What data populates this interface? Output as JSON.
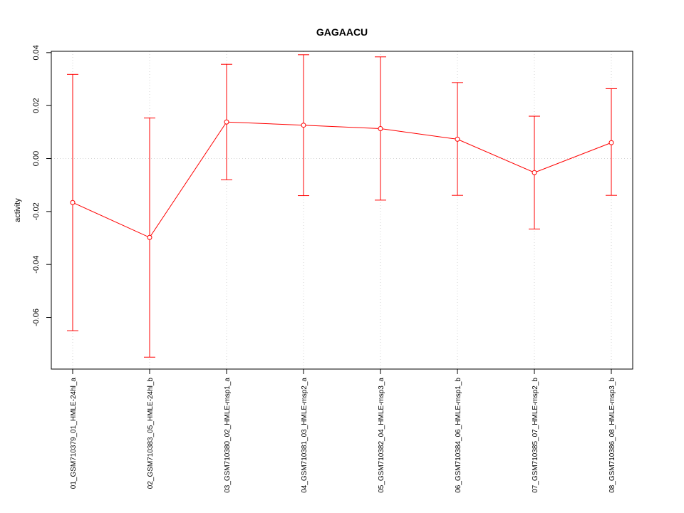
{
  "chart_data": {
    "type": "line",
    "title": "GAGAACU",
    "ylabel": "activity",
    "xlabel": "",
    "ylim": [
      -0.0795,
      0.0405
    ],
    "yticks": [
      -0.06,
      -0.04,
      -0.02,
      0.0,
      0.02,
      0.04
    ],
    "ytick_labels": [
      "-0.06",
      "-0.04",
      "-0.02",
      "0.00",
      "0.02",
      "0.04"
    ],
    "grid": true,
    "categories": [
      "01_GSM710379_01_HMLE-24hl_a",
      "02_GSM710383_05_HMLE-24hl_b",
      "03_GSM710380_02_HMLE-msp1_a",
      "04_GSM710381_03_HMLE-msp2_a",
      "05_GSM710382_04_HMLE-msp3_a",
      "06_GSM710384_06_HMLE-msp1_b",
      "07_GSM710385_07_HMLE-msp2_b",
      "08_GSM710386_08_HMLE-msp3_b"
    ],
    "series": [
      {
        "values": [
          -0.0166,
          -0.0298,
          0.0138,
          0.0126,
          0.0113,
          0.0073,
          -0.0053,
          0.006
        ],
        "upper": [
          0.0318,
          0.0153,
          0.0356,
          0.0392,
          0.0384,
          0.0287,
          0.016,
          0.0264
        ],
        "lower": [
          -0.065,
          -0.075,
          -0.008,
          -0.014,
          -0.0157,
          -0.0139,
          -0.0266,
          -0.0139
        ],
        "color": "#ff0000"
      }
    ]
  }
}
